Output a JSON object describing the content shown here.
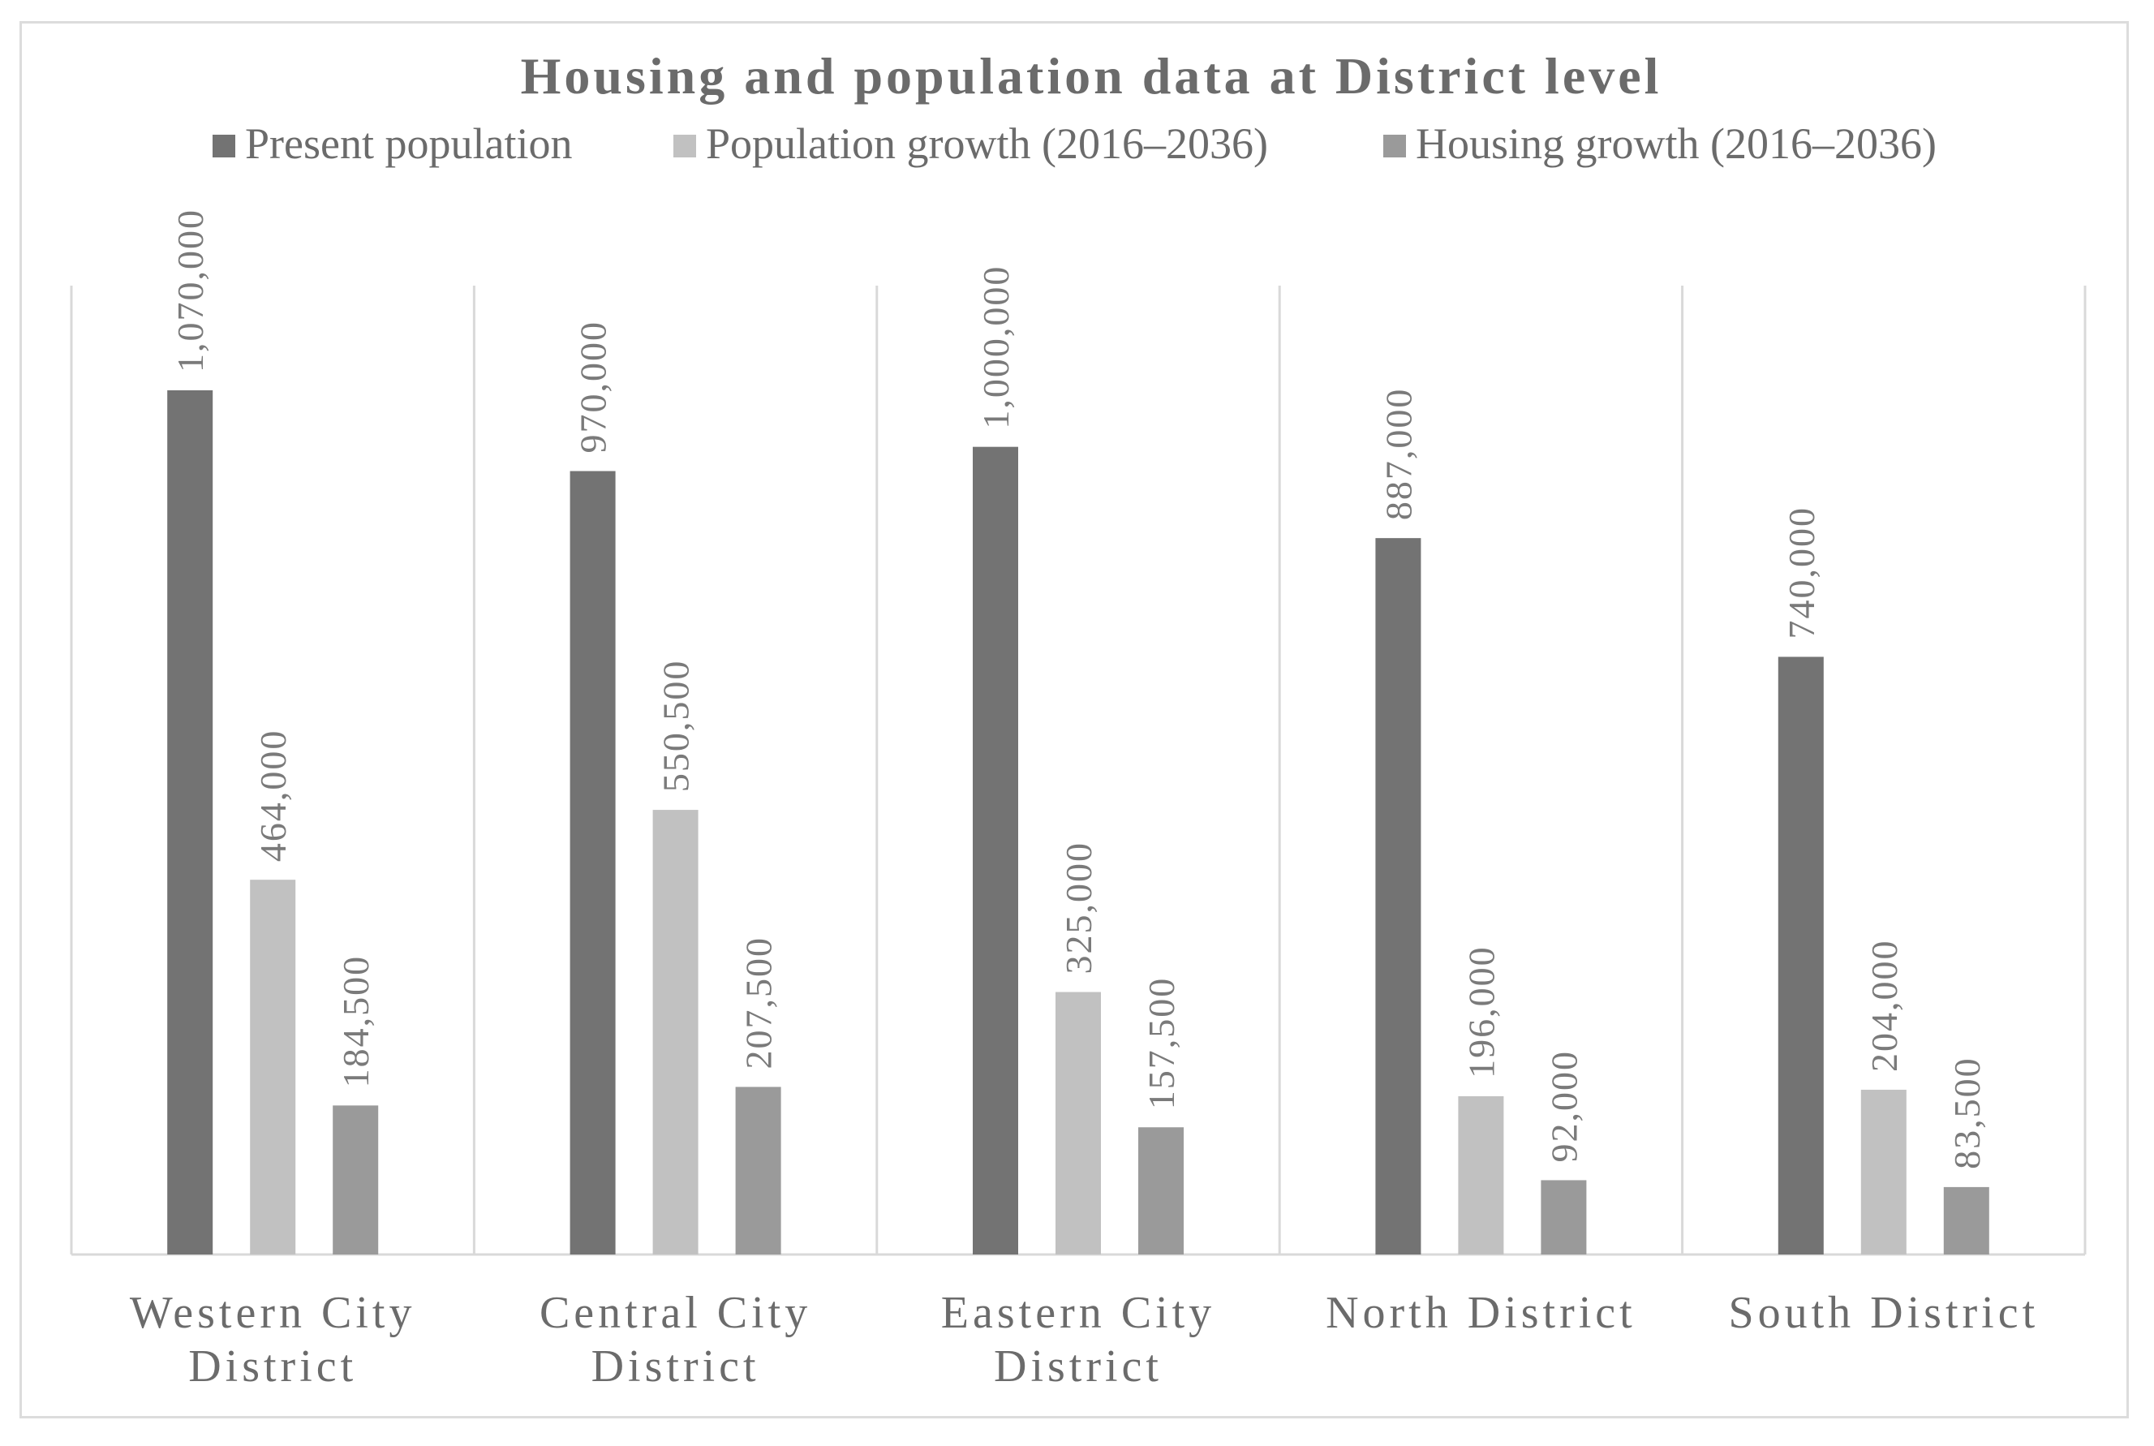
{
  "chart_data": {
    "type": "bar",
    "title": "Housing and population data at District level",
    "categories": [
      [
        "Western City",
        "District"
      ],
      [
        "Central City",
        "District"
      ],
      [
        "Eastern City",
        "District"
      ],
      [
        "North District"
      ],
      [
        "South District"
      ]
    ],
    "series": [
      {
        "name": "Present population",
        "color": "#737373",
        "values": [
          1070000,
          970000,
          1000000,
          887000,
          740000
        ],
        "labels": [
          "1,070,000",
          "970,000",
          "1,000,000",
          "887,000",
          "740,000"
        ]
      },
      {
        "name": "Population growth (2016–2036)",
        "color": "#c1c1c1",
        "values": [
          464000,
          550500,
          325000,
          196000,
          204000
        ],
        "labels": [
          "464,000",
          "550,500",
          "325,000",
          "196,000",
          "204,000"
        ]
      },
      {
        "name": "Housing growth (2016–2036)",
        "color": "#9a9a9a",
        "values": [
          184500,
          207500,
          157500,
          92000,
          83500
        ],
        "labels": [
          "184,500",
          "207,500",
          "157,500",
          "92,000",
          "83,500"
        ]
      }
    ],
    "ylim": [
      0,
      1200000
    ],
    "xlabel": "",
    "ylabel": "",
    "legend": "top",
    "grid": false
  },
  "colors": {
    "axis": "#d9d9d9",
    "text": "#6b6b6b"
  }
}
